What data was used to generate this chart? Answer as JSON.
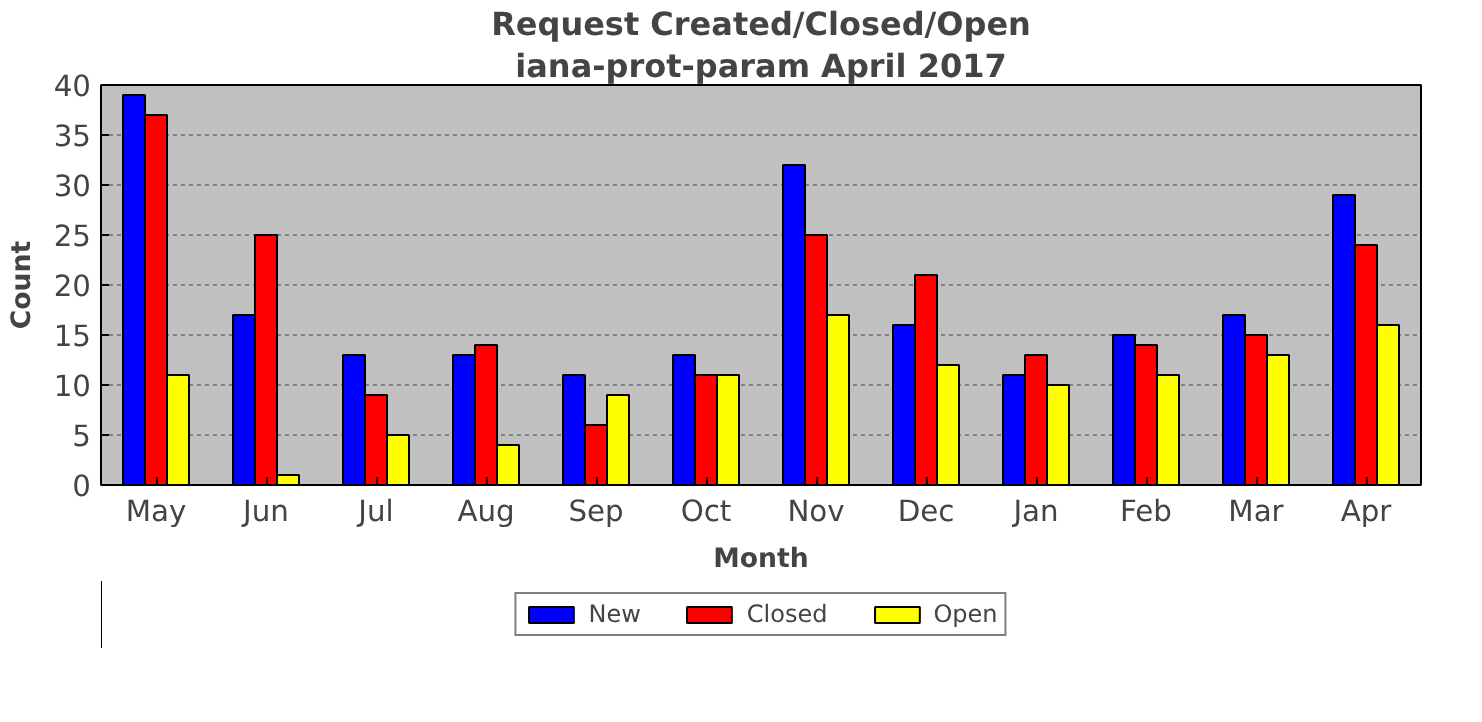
{
  "chart_data": {
    "type": "bar",
    "title": "Request Created/Closed/Open",
    "subtitle": "iana-prot-param April 2017",
    "xlabel": "Month",
    "ylabel": "Count",
    "categories": [
      "May",
      "Jun",
      "Jul",
      "Aug",
      "Sep",
      "Oct",
      "Nov",
      "Dec",
      "Jan",
      "Feb",
      "Mar",
      "Apr"
    ],
    "series": [
      {
        "name": "New",
        "color": "#0000ff",
        "values": [
          39,
          17,
          13,
          13,
          11,
          13,
          32,
          16,
          11,
          15,
          17,
          29
        ]
      },
      {
        "name": "Closed",
        "color": "#ff0000",
        "values": [
          37,
          25,
          9,
          14,
          6,
          11,
          25,
          21,
          13,
          14,
          15,
          24
        ]
      },
      {
        "name": "Open",
        "color": "#ffff00",
        "values": [
          11,
          1,
          5,
          4,
          9,
          11,
          17,
          12,
          10,
          11,
          13,
          16
        ]
      }
    ],
    "ylim": [
      0,
      40
    ],
    "yticks": [
      0,
      5,
      10,
      15,
      20,
      25,
      30,
      35,
      40
    ],
    "grid": "y",
    "legend": "bottom"
  }
}
